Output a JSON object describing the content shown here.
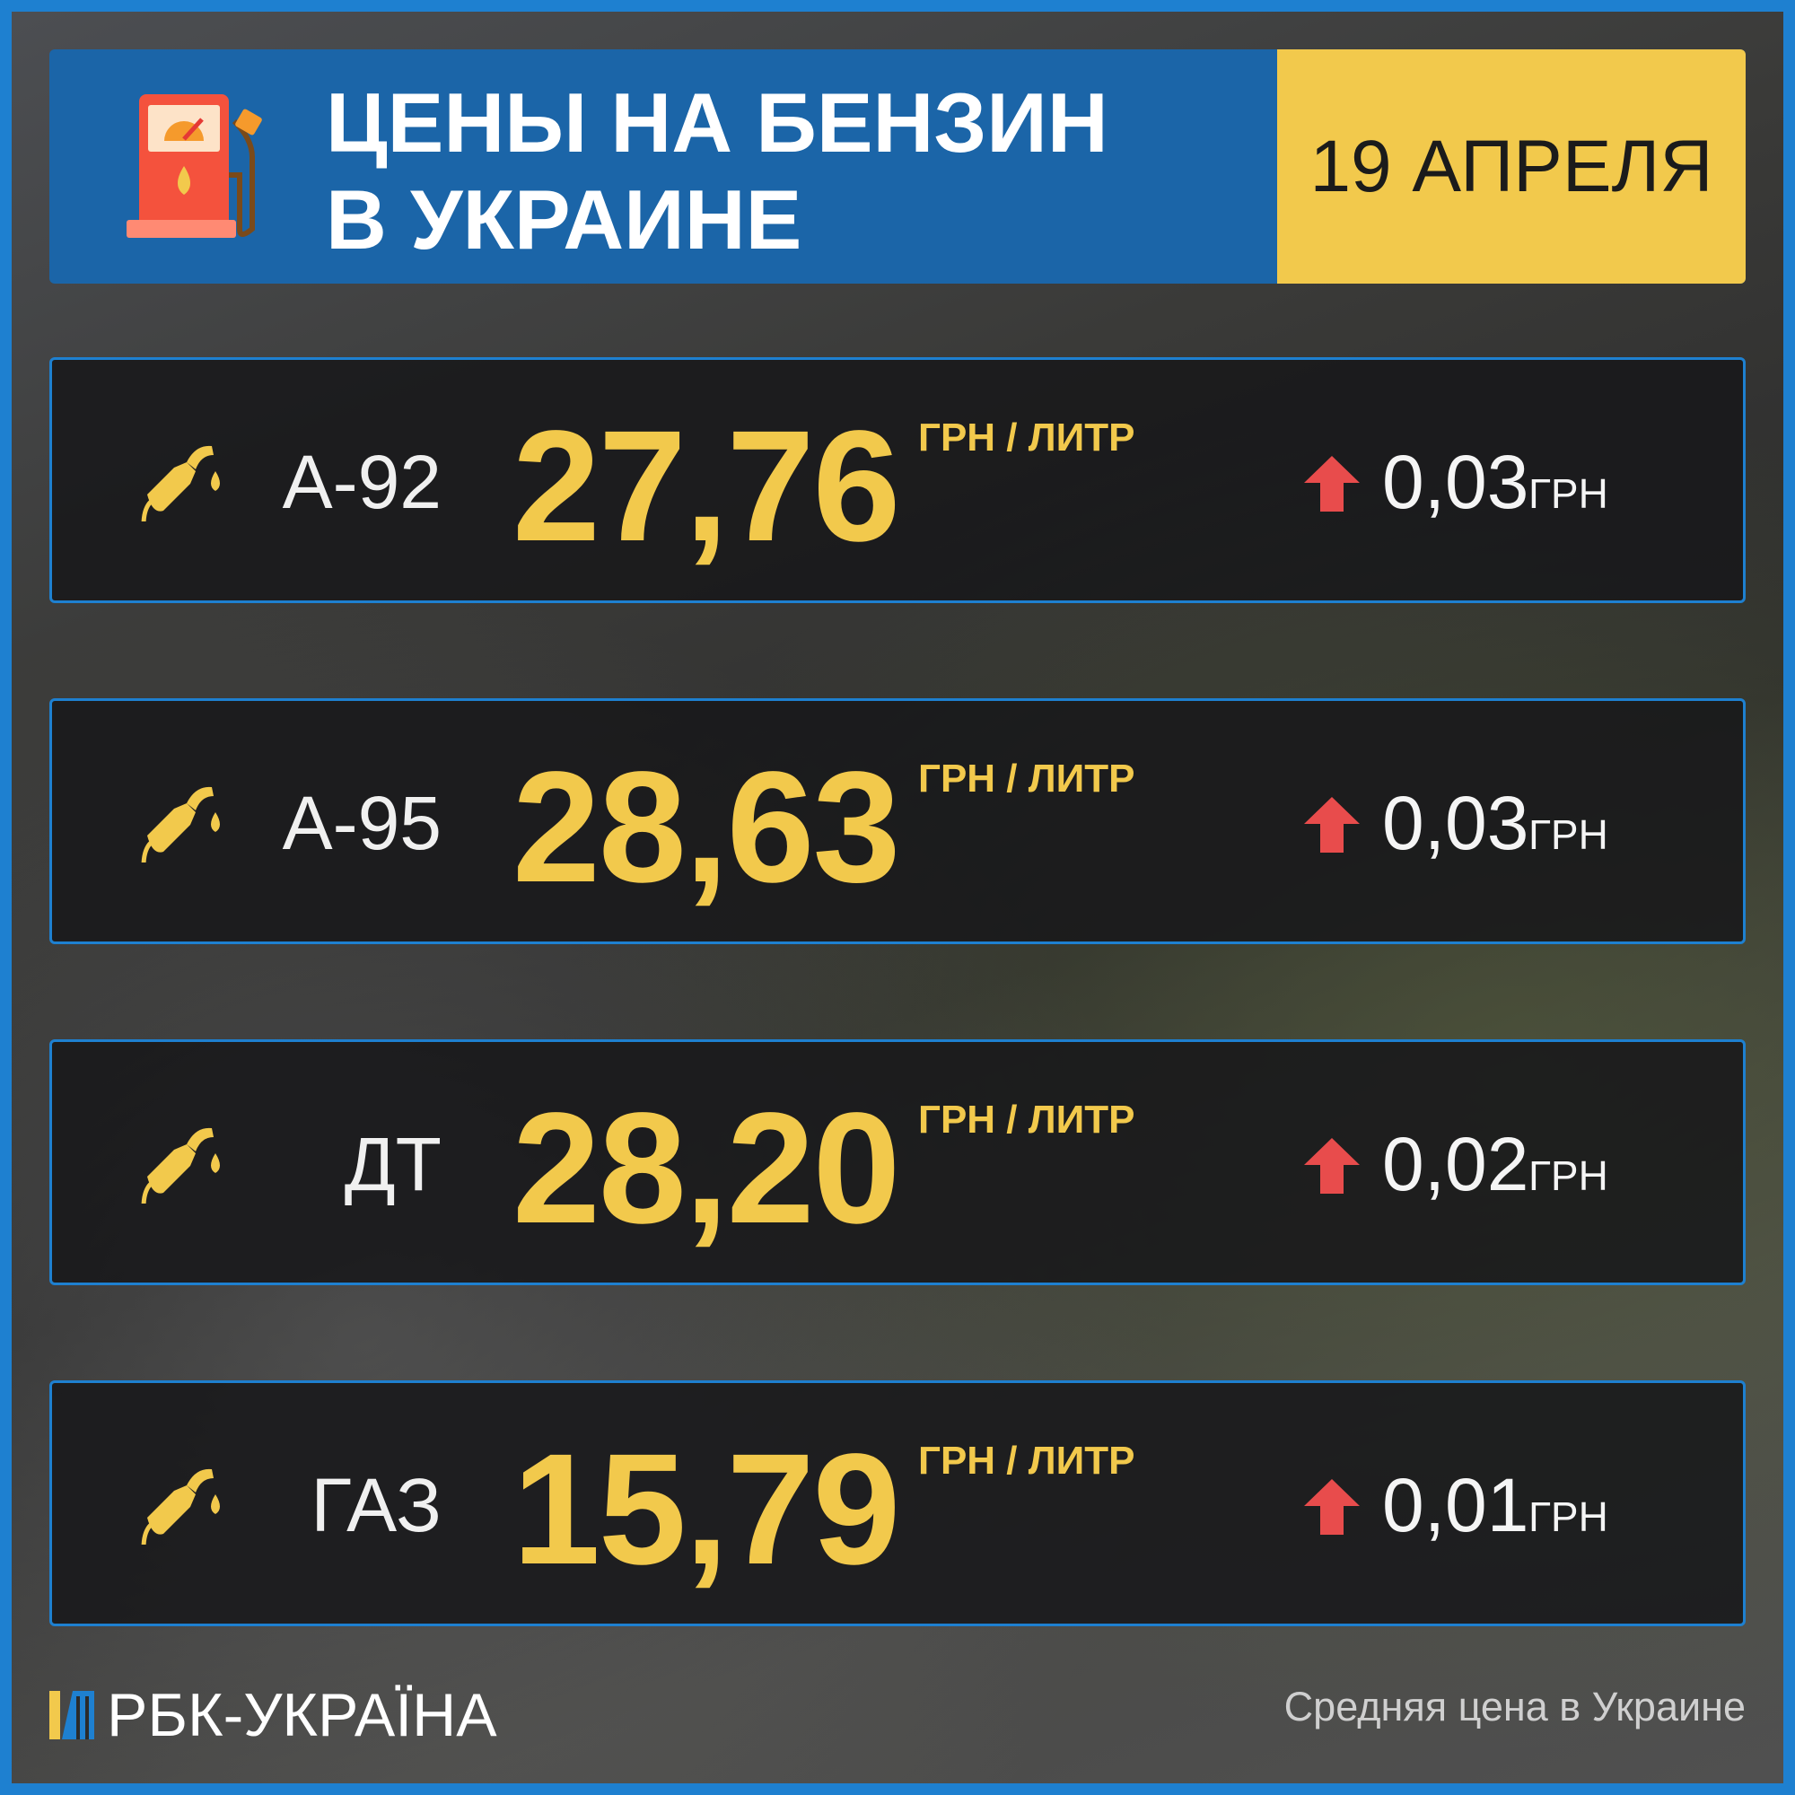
{
  "header": {
    "title_line1": "ЦЕНЫ НА БЕНЗИН",
    "title_line2": "В УКРАИНЕ",
    "date": "19 АПРЕЛЯ",
    "icon": "fuel-pump-icon"
  },
  "rows": [
    {
      "fuel": "А-92",
      "price": "27,76",
      "unit": "ГРН / ЛИТР",
      "change": "0,03",
      "change_unit": "ГРН",
      "direction": "up"
    },
    {
      "fuel": "А-95",
      "price": "28,63",
      "unit": "ГРН / ЛИТР",
      "change": "0,03",
      "change_unit": "ГРН",
      "direction": "up"
    },
    {
      "fuel": "ДТ",
      "price": "28,20",
      "unit": "ГРН / ЛИТР",
      "change": "0,02",
      "change_unit": "ГРН",
      "direction": "up"
    },
    {
      "fuel": "ГАЗ",
      "price": "15,79",
      "unit": "ГРН / ЛИТР",
      "change": "0,01",
      "change_unit": "ГРН",
      "direction": "up"
    }
  ],
  "footer": {
    "logo": "РБК-УКРАЇНА",
    "note": "Средняя цена в Украине"
  },
  "colors": {
    "accent_blue": "#1e80d0",
    "header_blue": "#1b65a8",
    "yellow": "#f2c94c",
    "up_red": "#e84c4c"
  }
}
